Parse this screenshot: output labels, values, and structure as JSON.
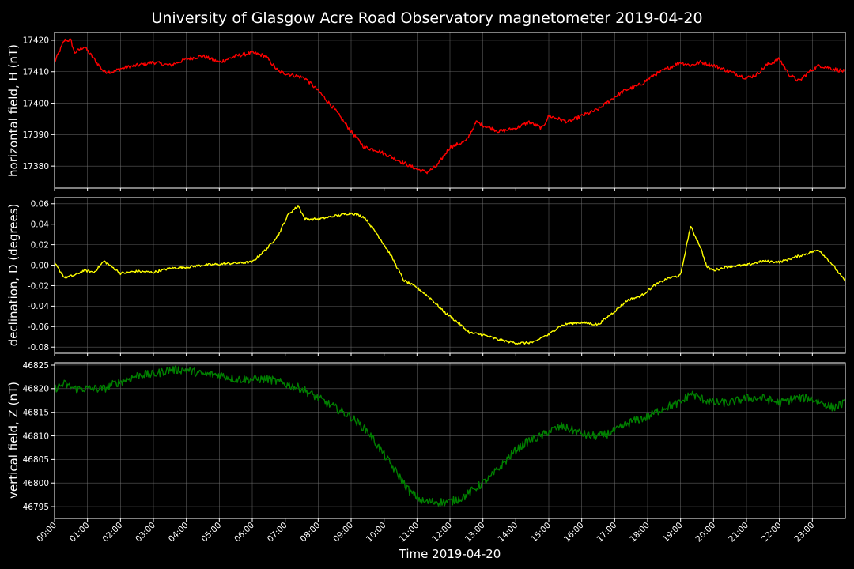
{
  "chart_data": {
    "type": "line",
    "title": "University of Glasgow Acre Road Observatory magnetometer 2019-04-20",
    "xlabel": "Time 2019-04-20",
    "xlim": [
      "00:00",
      "24:00"
    ],
    "xticks": [
      "00:00",
      "01:00",
      "02:00",
      "03:00",
      "04:00",
      "05:00",
      "06:00",
      "07:00",
      "08:00",
      "09:00",
      "10:00",
      "11:00",
      "12:00",
      "13:00",
      "14:00",
      "15:00",
      "16:00",
      "17:00",
      "18:00",
      "19:00",
      "20:00",
      "21:00",
      "22:00",
      "23:00"
    ],
    "grid": true,
    "panels": [
      {
        "ylabel": "horizontal field, H (nT)",
        "color": "#ff0000",
        "ylim": [
          17373,
          17422.5
        ],
        "yticks": [
          17380,
          17390,
          17400,
          17410,
          17420
        ],
        "noise": 0.6,
        "series": {
          "x_hours": [
            0,
            0.3,
            0.5,
            0.6,
            0.9,
            1.2,
            1.5,
            1.8,
            2.0,
            2.5,
            3.0,
            3.5,
            4.0,
            4.5,
            5.0,
            5.5,
            6.0,
            6.4,
            6.8,
            7.2,
            7.6,
            8.0,
            8.5,
            9.0,
            9.4,
            9.8,
            10.2,
            10.6,
            11.0,
            11.3,
            11.6,
            12.0,
            12.5,
            12.8,
            13.0,
            13.5,
            14.0,
            14.4,
            14.8,
            15.0,
            15.3,
            15.6,
            16.0,
            16.5,
            17.0,
            17.3,
            17.8,
            18.2,
            18.6,
            19.0,
            19.3,
            19.6,
            20.0,
            20.5,
            21.0,
            21.3,
            21.6,
            22.0,
            22.3,
            22.6,
            22.9,
            23.2,
            23.6,
            24.0
          ],
          "y": [
            17413,
            17420,
            17420,
            17416,
            17418,
            17414,
            17410,
            17410,
            17411,
            17412,
            17413,
            17412,
            17414,
            17415,
            17413,
            17415,
            17416,
            17415,
            17410,
            17409,
            17408,
            17404,
            17398,
            17391,
            17386,
            17385,
            17383,
            17381,
            17379,
            17378,
            17380,
            17386,
            17388,
            17394,
            17393,
            17391,
            17392,
            17394,
            17392,
            17396,
            17395,
            17394,
            17396,
            17398,
            17402,
            17404,
            17406,
            17409,
            17411,
            17413,
            17412,
            17413,
            17412,
            17410,
            17408,
            17409,
            17412,
            17414,
            17409,
            17407,
            17410,
            17412,
            17411,
            17410
          ]
        }
      },
      {
        "ylabel": "declination, D (degrees)",
        "color": "#ffff00",
        "ylim": [
          -0.086,
          0.066
        ],
        "yticks": [
          -0.08,
          -0.06,
          -0.04,
          -0.02,
          0.0,
          0.02,
          0.04,
          0.06
        ],
        "yformat": 2,
        "noise": 0.0012,
        "series": {
          "x_hours": [
            0,
            0.3,
            0.6,
            0.9,
            1.2,
            1.5,
            1.8,
            2.0,
            2.5,
            3.0,
            3.5,
            4.0,
            4.5,
            5.0,
            5.5,
            6.0,
            6.5,
            6.8,
            7.1,
            7.4,
            7.6,
            8.0,
            8.5,
            9.0,
            9.4,
            9.8,
            10.2,
            10.6,
            11.0,
            11.4,
            11.8,
            12.2,
            12.6,
            13.0,
            13.5,
            14.0,
            14.3,
            14.6,
            14.8,
            15.0,
            15.3,
            15.6,
            16.0,
            16.5,
            17.0,
            17.4,
            17.8,
            18.2,
            18.6,
            19.0,
            19.3,
            19.6,
            19.8,
            20.0,
            20.5,
            21.0,
            21.5,
            22.0,
            22.5,
            22.9,
            23.2,
            23.6,
            24.0
          ],
          "y": [
            0.002,
            -0.012,
            -0.01,
            -0.005,
            -0.007,
            0.004,
            -0.003,
            -0.008,
            -0.006,
            -0.007,
            -0.003,
            -0.002,
            0.0,
            0.001,
            0.002,
            0.003,
            0.018,
            0.03,
            0.05,
            0.058,
            0.045,
            0.045,
            0.048,
            0.051,
            0.047,
            0.03,
            0.01,
            -0.015,
            -0.022,
            -0.032,
            -0.045,
            -0.055,
            -0.066,
            -0.068,
            -0.073,
            -0.076,
            -0.076,
            -0.075,
            -0.07,
            -0.068,
            -0.06,
            -0.057,
            -0.056,
            -0.058,
            -0.045,
            -0.034,
            -0.03,
            -0.02,
            -0.013,
            -0.01,
            0.038,
            0.018,
            -0.002,
            -0.005,
            -0.001,
            0.0,
            0.004,
            0.003,
            0.008,
            0.012,
            0.015,
            0.001,
            -0.016
          ]
        }
      },
      {
        "ylabel": "vertical field, Z (nT)",
        "color": "#008000",
        "ylim": [
          46792.5,
          46825.5
        ],
        "yticks": [
          46795,
          46800,
          46805,
          46810,
          46815,
          46820,
          46825
        ],
        "noise": 0.9,
        "series": {
          "x_hours": [
            0,
            0.3,
            0.6,
            0.9,
            1.2,
            1.5,
            1.8,
            2.2,
            2.6,
            3.0,
            3.5,
            4.0,
            4.5,
            5.0,
            5.5,
            6.0,
            6.5,
            7.0,
            7.5,
            8.0,
            8.5,
            9.0,
            9.5,
            10.0,
            10.5,
            10.8,
            11.2,
            11.6,
            12.0,
            12.4,
            12.8,
            13.2,
            13.6,
            14.0,
            14.4,
            14.8,
            15.0,
            15.4,
            15.8,
            16.2,
            16.6,
            17.0,
            17.5,
            18.0,
            18.5,
            19.0,
            19.3,
            19.6,
            20.0,
            20.5,
            21.0,
            21.5,
            22.0,
            22.5,
            22.9,
            23.3,
            23.6,
            24.0
          ],
          "y": [
            46820,
            46821,
            46820,
            46820,
            46820,
            46820,
            46821,
            46822,
            46823,
            46823,
            46824,
            46824,
            46823,
            46823,
            46822,
            46822,
            46822,
            46821,
            46820,
            46818,
            46816,
            46814,
            46811,
            46806,
            46801,
            46798,
            46796,
            46796,
            46796,
            46797,
            46799,
            46801,
            46804,
            46807,
            46809,
            46810,
            46811,
            46812,
            46811,
            46810,
            46810,
            46811,
            46813,
            46814,
            46816,
            46817,
            46819,
            46818,
            46817,
            46817,
            46818,
            46818,
            46817,
            46818,
            46818,
            46817,
            46816,
            46817
          ]
        }
      }
    ]
  }
}
